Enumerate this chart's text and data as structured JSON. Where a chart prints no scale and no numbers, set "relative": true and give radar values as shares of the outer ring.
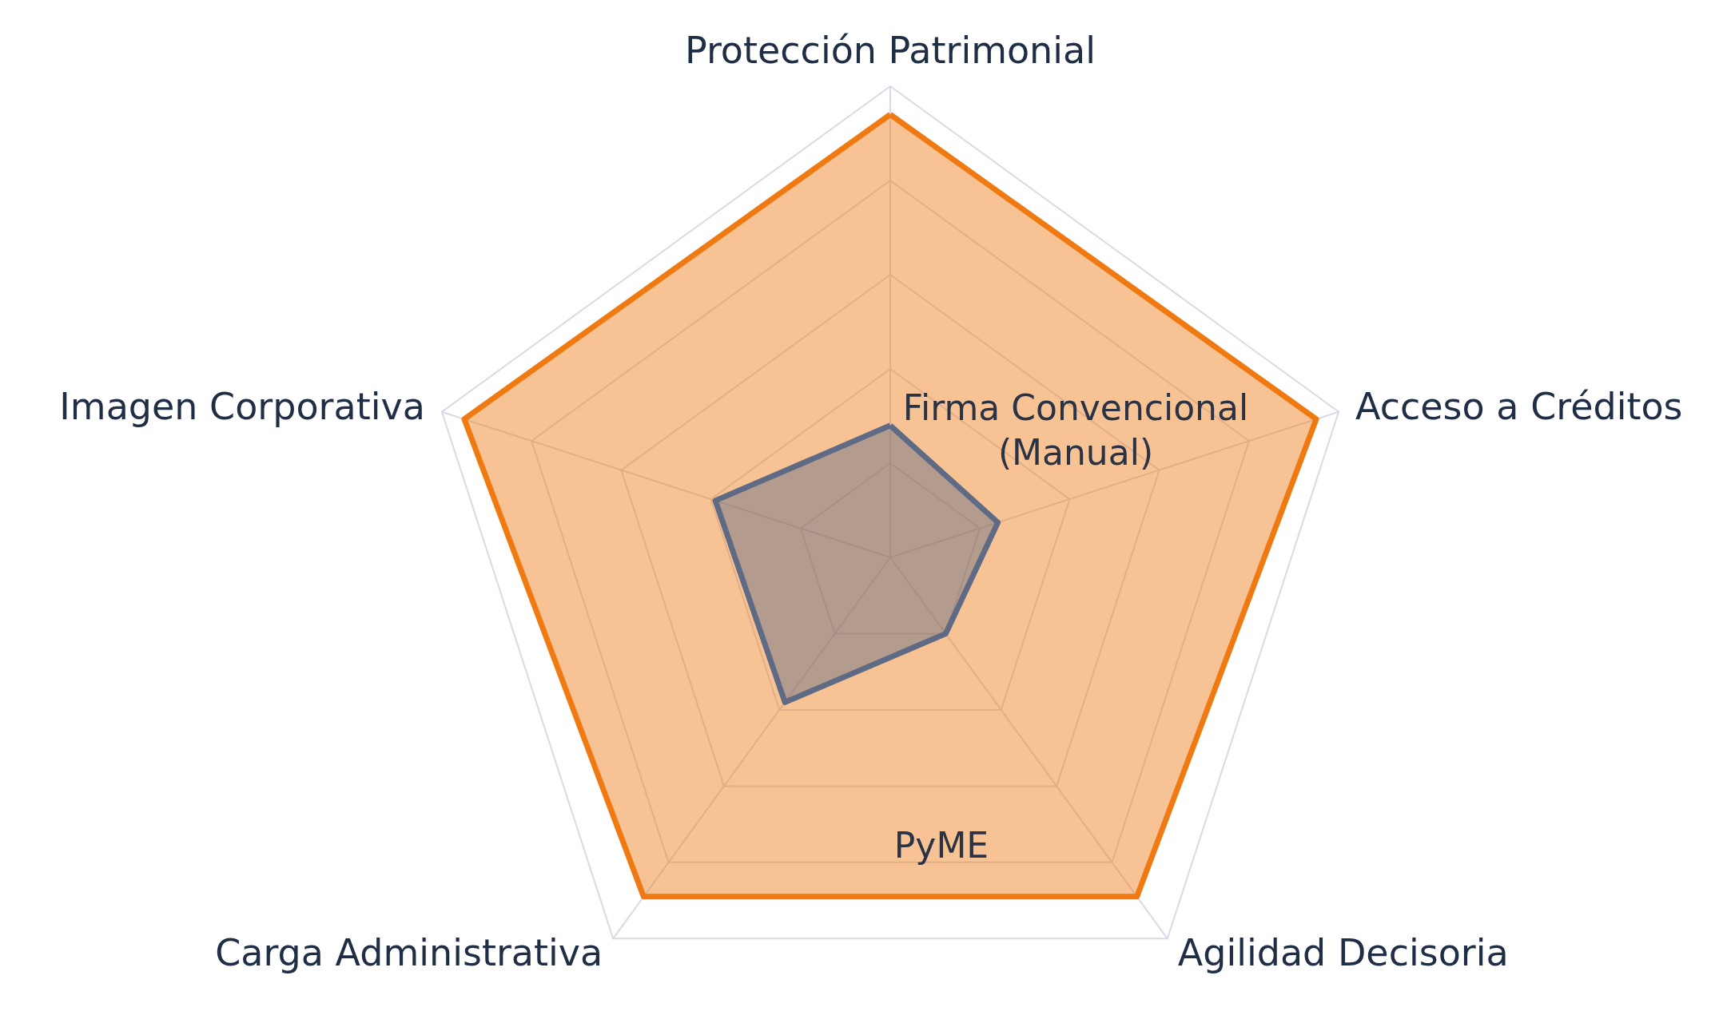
{
  "chart_data": {
    "type": "radar",
    "relative": true,
    "legend": false,
    "categories": [
      "Protección Patrimonial",
      "Acceso a Créditos",
      "Agilidad Decisoria",
      "Carga Administrativa",
      "Imagen Corporativa"
    ],
    "series": [
      {
        "name": "PyME",
        "color": "#f07a12",
        "values": [
          0.94,
          0.95,
          0.89,
          0.89,
          0.95
        ]
      },
      {
        "name": "Firma Convencional (Manual)",
        "color": "#5f6b85",
        "values": [
          0.28,
          0.24,
          0.2,
          0.38,
          0.39
        ]
      }
    ]
  }
}
